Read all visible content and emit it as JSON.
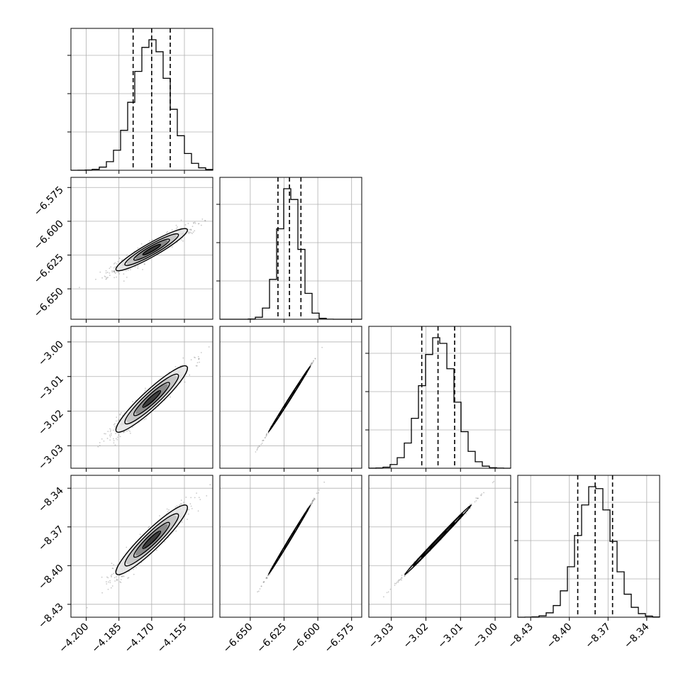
{
  "chart_data": {
    "type": "corner",
    "grid": true,
    "variables": [
      {
        "mean": -4.17,
        "std": 0.0082,
        "q16": -4.1785,
        "q50": -4.17,
        "q84": -4.1615,
        "hist_range": [
          -4.207,
          -4.142
        ],
        "hist_peak": 1.0,
        "ticks": [
          -4.2,
          -4.185,
          -4.17,
          -4.155
        ],
        "tick_labels": [
          "−4.200",
          "−4.185",
          "−4.170",
          "−4.155"
        ]
      },
      {
        "mean": -6.621,
        "std": 0.0078,
        "q16": -6.6295,
        "q50": -6.621,
        "q84": -6.6125,
        "hist_range": [
          -6.6725,
          -6.5675
        ],
        "hist_peak": 1.0,
        "ticks": [
          -6.65,
          -6.625,
          -6.6,
          -6.575
        ],
        "tick_labels": [
          "−6.650",
          "−6.625",
          "−6.600",
          "−6.575"
        ]
      },
      {
        "mean": -3.0165,
        "std": 0.0048,
        "q16": -3.0212,
        "q50": -3.0165,
        "q84": -3.0117,
        "hist_range": [
          -3.0365,
          -2.9955
        ],
        "hist_peak": 1.0,
        "ticks": [
          -3.03,
          -3.02,
          -3.01,
          -3.0
        ],
        "tick_labels": [
          "−3.03",
          "−3.02",
          "−3.01",
          "−3.00"
        ]
      },
      {
        "mean": -8.38,
        "std": 0.0135,
        "q16": -8.3935,
        "q50": -8.38,
        "q84": -8.3665,
        "hist_range": [
          -8.44,
          -8.33
        ],
        "hist_peak": 1.0,
        "ticks": [
          -8.43,
          -8.4,
          -8.37,
          -8.34
        ],
        "tick_labels": [
          "−8.43",
          "−8.40",
          "−8.37",
          "−8.34"
        ]
      }
    ],
    "correlations": [
      [
        1.0,
        0.93,
        0.93,
        0.93
      ],
      [
        0.93,
        1.0,
        0.999,
        0.999
      ],
      [
        0.93,
        0.999,
        1.0,
        0.998
      ],
      [
        0.93,
        0.999,
        0.998,
        1.0
      ]
    ],
    "contour_levels_sigma": [
      0.5,
      1.0,
      1.5,
      2.0
    ],
    "colors": {
      "line": "#000000",
      "points": "#8a8a8a",
      "grid": "#b0b0b0"
    }
  }
}
